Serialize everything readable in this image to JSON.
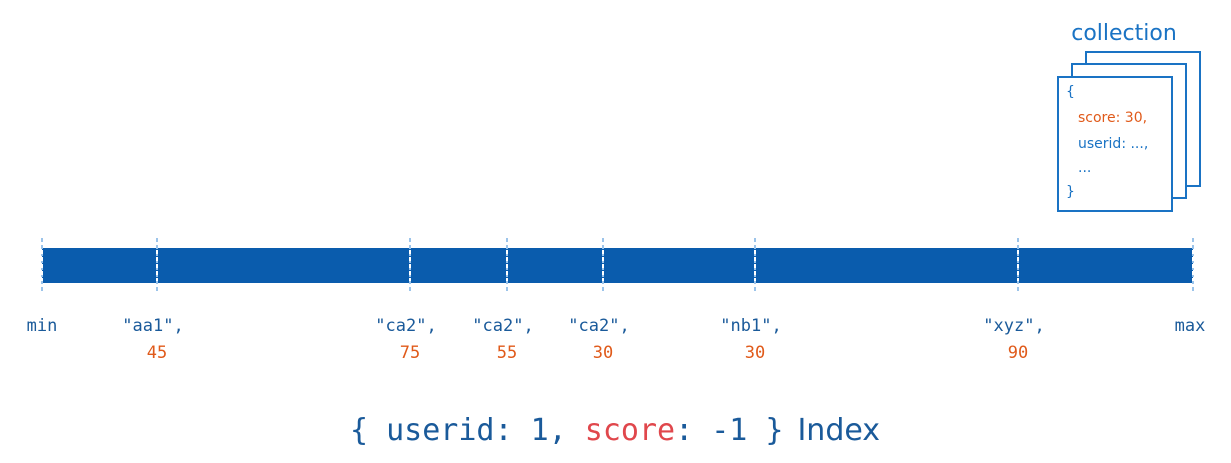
{
  "collection": {
    "title": "collection",
    "document": {
      "open": "{",
      "lines": [
        "score: 30,",
        "userid: ...,",
        "..."
      ],
      "close": "}"
    }
  },
  "index": {
    "min": "min",
    "max": "max",
    "entries": [
      {
        "userid": "\"aa1\",",
        "score": 45
      },
      {
        "userid": "\"ca2\",",
        "score": 75
      },
      {
        "userid": "\"ca2\",",
        "score": 55
      },
      {
        "userid": "\"ca2\",",
        "score": 30
      },
      {
        "userid": "\"nb1\",",
        "score": 30
      },
      {
        "userid": "\"xyz\",",
        "score": 90
      }
    ]
  },
  "caption": {
    "parts": [
      "{ userid: 1, ",
      "score",
      ": -1 }",
      "Index"
    ]
  }
}
